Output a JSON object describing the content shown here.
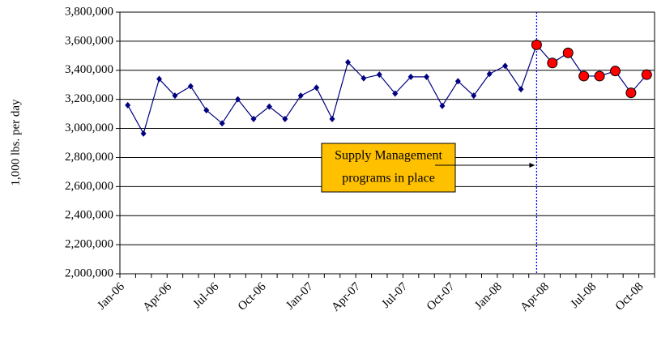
{
  "chart_data": {
    "type": "line",
    "y_label": "1,000 lbs. per day",
    "categories": [
      "Jan-06",
      null,
      null,
      "Apr-06",
      null,
      null,
      "Jul-06",
      null,
      null,
      "Oct-06",
      null,
      null,
      "Jan-07",
      null,
      null,
      "Apr-07",
      null,
      null,
      "Jul-07",
      null,
      null,
      "Oct-07",
      null,
      null,
      "Jan-08",
      null,
      null,
      "Apr-08",
      null,
      null,
      "Jul-08",
      null,
      null,
      "Oct-08"
    ],
    "series": [
      {
        "color": "#000080",
        "marker": "diamond",
        "values": [
          3160000,
          2965000,
          3340000,
          3225000,
          3290000,
          3125000,
          3035000,
          3200000,
          3065000,
          3150000,
          3065000,
          3225000,
          3280000,
          3065000,
          3455000,
          3345000,
          3370000,
          3240000,
          3355000,
          3355000,
          3155000,
          3325000,
          3225000,
          3375000,
          3430000,
          3270000,
          3575000,
          3450000,
          3520000,
          3360000,
          3360000,
          3395000,
          3245000,
          3370000
        ]
      },
      {
        "color": "#ff0000",
        "marker": "circle",
        "values": [
          null,
          null,
          null,
          null,
          null,
          null,
          null,
          null,
          null,
          null,
          null,
          null,
          null,
          null,
          null,
          null,
          null,
          null,
          null,
          null,
          null,
          null,
          null,
          null,
          null,
          null,
          3575000,
          3450000,
          3520000,
          3360000,
          3360000,
          3395000,
          3245000,
          3370000
        ]
      }
    ],
    "annotation": [
      "Supply Management",
      "programs in place"
    ],
    "annotation_color": "#ffc000",
    "ylim": [
      2000000,
      3800000
    ],
    "yticks": [
      {
        "value": 2000000,
        "label": "2,000,000"
      },
      {
        "value": 2200000,
        "label": "2,200,000"
      },
      {
        "value": 2400000,
        "label": "2,400,000"
      },
      {
        "value": 2600000,
        "label": "2,600,000"
      },
      {
        "value": 2800000,
        "label": "2,800,000"
      },
      {
        "value": 3000000,
        "label": "3,000,000"
      },
      {
        "value": 3200000,
        "label": "3,200,000"
      },
      {
        "value": 3400000,
        "label": "3,400,000"
      },
      {
        "value": 3600000,
        "label": "3,600,000"
      },
      {
        "value": 3800000,
        "label": "3,800,000"
      }
    ],
    "grid": true
  }
}
